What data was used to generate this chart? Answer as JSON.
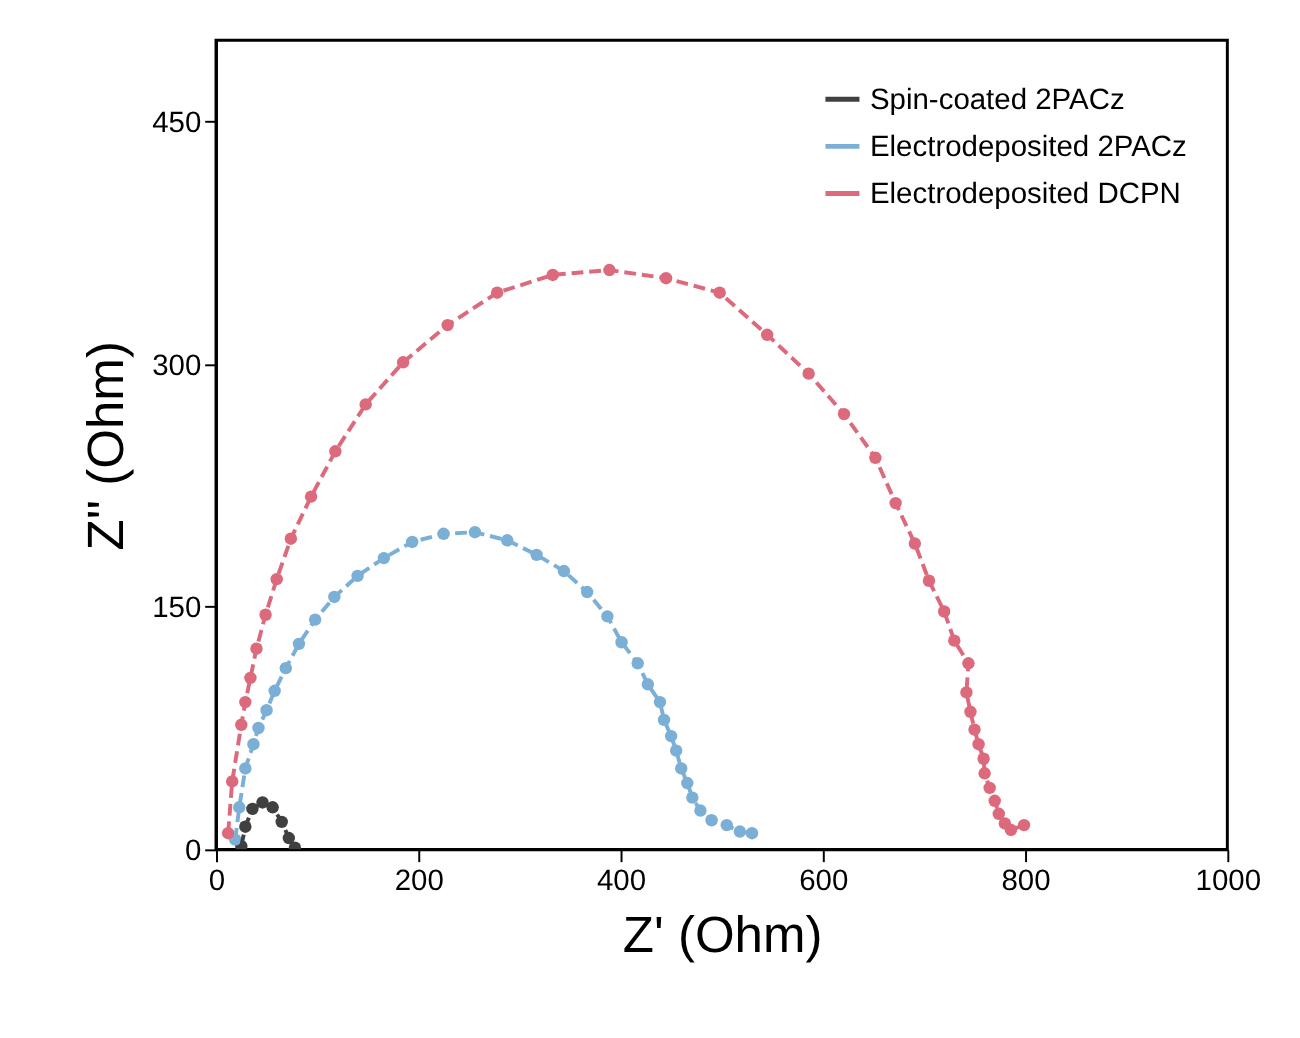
{
  "chart_data": {
    "type": "line",
    "xlabel": "Z' (Ohm)",
    "ylabel": "Z'' (Ohm)",
    "xlim": [
      0,
      1000
    ],
    "xticks": [
      0,
      200,
      400,
      600,
      800,
      {
        "value": 1000,
        "label": "1000"
      }
    ],
    "ylim": [
      0,
      500
    ],
    "yticks": [
      0,
      150,
      300,
      450
    ],
    "grid": false,
    "legend": "top right",
    "marker": "circle",
    "line_style": "dashed",
    "series": [
      {
        "name": "Spin-coated 2PACz",
        "color": "#404040",
        "x": [
          25,
          29,
          36,
          46,
          56,
          65,
          72,
          78
        ],
        "values": [
          2,
          14,
          25,
          29,
          26,
          17,
          7,
          1
        ]
      },
      {
        "name": "Electrodeposited 2PACz",
        "color": "#7bafd6",
        "x": [
          19,
          23,
          29,
          37,
          42,
          50,
          58,
          69,
          82,
          98,
          117,
          140,
          166,
          194,
          225,
          256,
          288,
          317,
          344,
          367,
          387,
          401,
          417,
          427,
          439,
          443,
          450,
          455,
          460,
          466,
          471,
          479,
          490,
          505,
          518,
          530
        ],
        "values": [
          6,
          26,
          50,
          65,
          75,
          86,
          98,
          112,
          127,
          142,
          156,
          169,
          180,
          190,
          195,
          196,
          191,
          182,
          172,
          159,
          144,
          128,
          115,
          102,
          91,
          80,
          70,
          61,
          50,
          41,
          32,
          24,
          18,
          15,
          11,
          10
        ]
      },
      {
        "name": "Electrodeposited DCPN",
        "color": "#dc6a7c",
        "x": [
          12,
          16,
          25,
          29,
          34,
          40,
          49,
          60,
          74,
          94,
          118,
          148,
          185,
          229,
          278,
          333,
          389,
          445,
          498,
          545,
          586,
          621,
          652,
          672,
          691,
          705,
          720,
          730,
          744,
          742,
          746,
          750,
          754,
          759,
          760,
          765,
          770,
          774,
          780,
          786,
          799
        ],
        "values": [
          10,
          42,
          77,
          91,
          106,
          124,
          145,
          167,
          192,
          218,
          246,
          275,
          301,
          324,
          344,
          355,
          358,
          353,
          344,
          318,
          294,
          269,
          242,
          214,
          189,
          166,
          147,
          129,
          115,
          97,
          85,
          74,
          65,
          56,
          47,
          38,
          30,
          22,
          16,
          12,
          15
        ]
      }
    ]
  }
}
